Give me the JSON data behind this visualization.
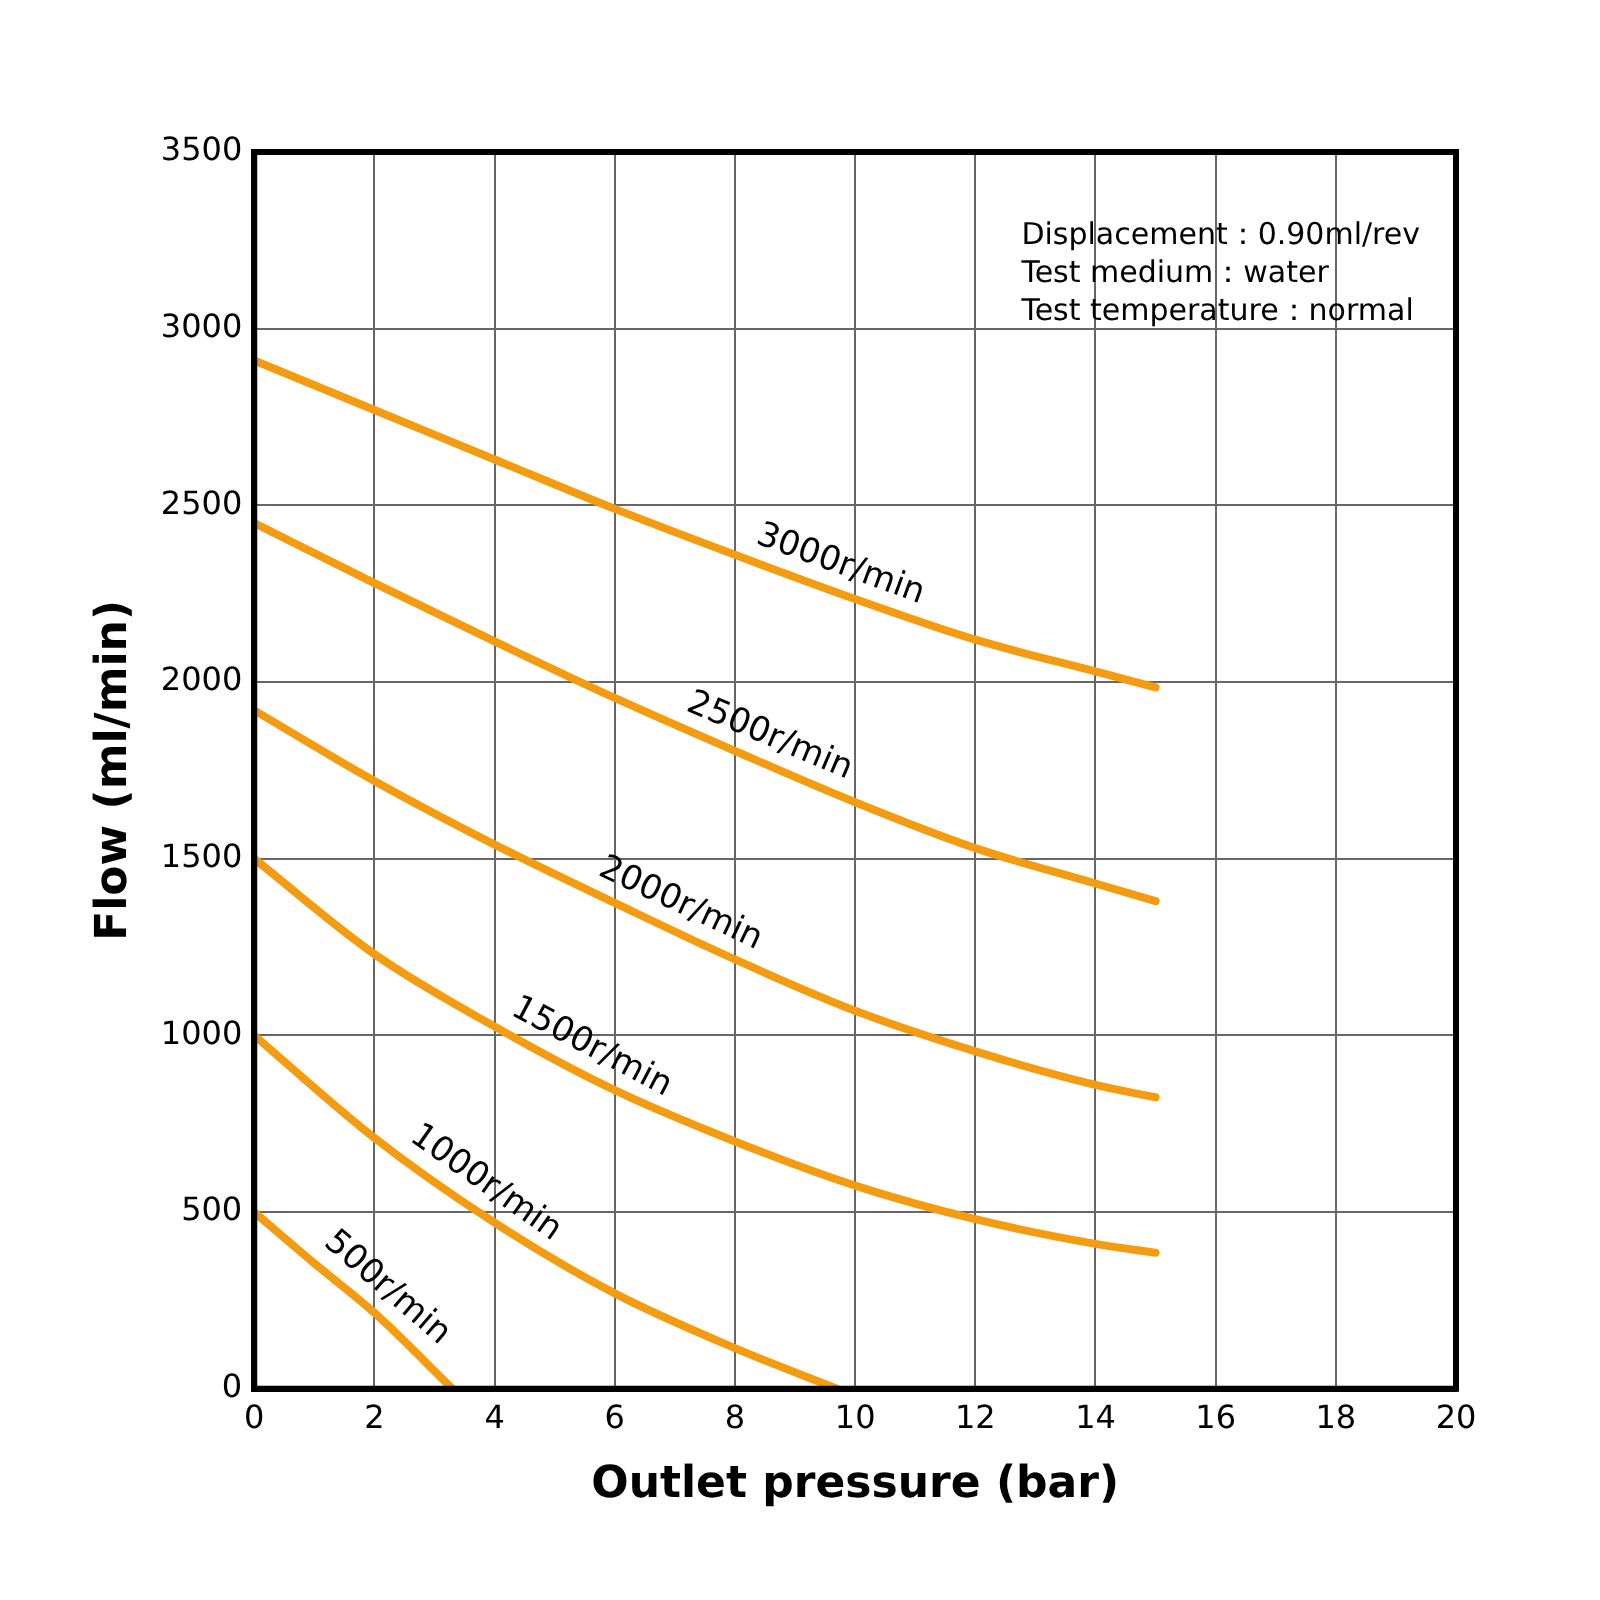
{
  "chart_data": {
    "type": "line",
    "xlabel": "Outlet pressure (bar)",
    "ylabel": "Flow (ml/min)",
    "xlim": [
      0,
      20
    ],
    "xticks": [
      0,
      2,
      4,
      6,
      8,
      10,
      12,
      14,
      16,
      18,
      20
    ],
    "ylim": [
      0,
      3500
    ],
    "yticks": [
      0,
      500,
      1000,
      1500,
      2000,
      2500,
      3000,
      3500
    ],
    "grid": true,
    "line_style": "solid",
    "series": [
      {
        "name": "3000r/min",
        "color": "#f39c12",
        "x": [
          0,
          2,
          4,
          6,
          8,
          10,
          12,
          14,
          15
        ],
        "values": [
          2910,
          2770,
          2630,
          2490,
          2360,
          2235,
          2120,
          2030,
          1985
        ]
      },
      {
        "name": "2500r/min",
        "color": "#f39c12",
        "x": [
          0,
          2,
          4,
          6,
          8,
          10,
          12,
          14,
          15
        ],
        "values": [
          2450,
          2280,
          2115,
          1955,
          1805,
          1660,
          1530,
          1430,
          1380
        ]
      },
      {
        "name": "2000r/min",
        "color": "#f39c12",
        "x": [
          0,
          2,
          4,
          6,
          8,
          10,
          12,
          14,
          15
        ],
        "values": [
          1920,
          1720,
          1540,
          1375,
          1215,
          1070,
          955,
          860,
          825
        ]
      },
      {
        "name": "1500r/min",
        "color": "#f39c12",
        "x": [
          0,
          2,
          4,
          6,
          8,
          10,
          12,
          14,
          15
        ],
        "values": [
          1500,
          1230,
          1025,
          845,
          700,
          575,
          480,
          410,
          385
        ]
      },
      {
        "name": "1000r/min",
        "color": "#f39c12",
        "x": [
          0,
          2,
          4,
          6,
          8,
          9.7
        ],
        "values": [
          1000,
          710,
          470,
          270,
          115,
          0
        ]
      },
      {
        "name": "500r/min",
        "color": "#f39c12",
        "x": [
          0,
          1,
          2,
          3.3
        ],
        "values": [
          500,
          355,
          215,
          0
        ]
      }
    ],
    "annotations": [
      "Displacement：0.90ml/rev",
      "Test medium：water",
      "Test temperature：normal"
    ]
  }
}
